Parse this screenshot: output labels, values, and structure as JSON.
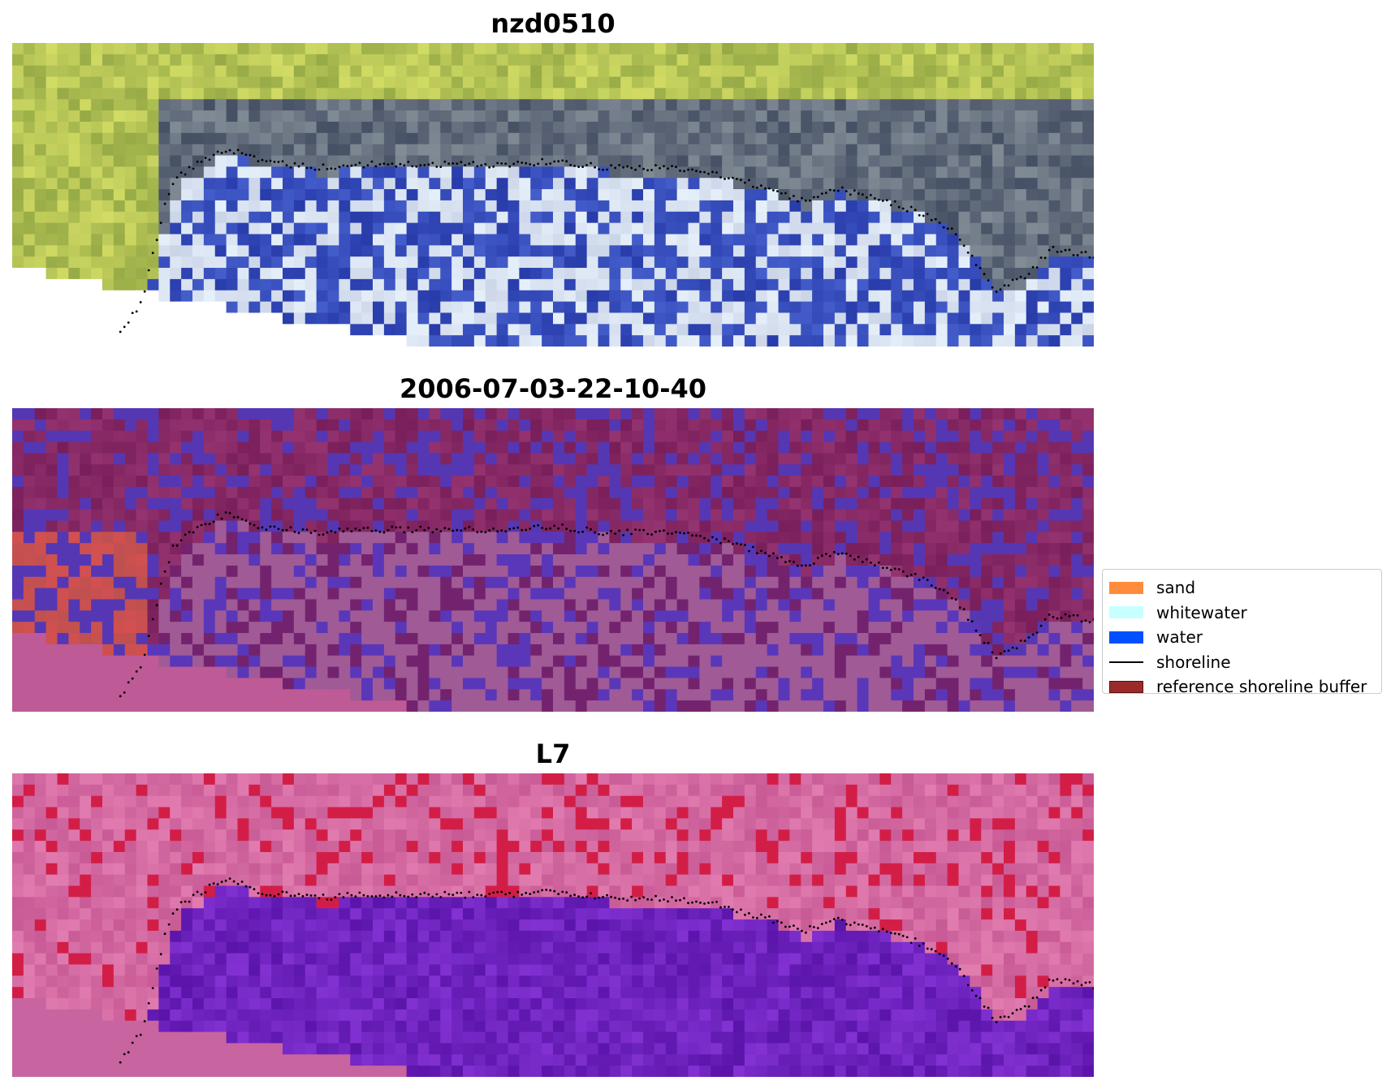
{
  "panels": [
    {
      "title": "nzd0510",
      "kind": "rgb"
    },
    {
      "title": "2006-07-03-22-10-40",
      "kind": "classified"
    },
    {
      "title": "L7",
      "kind": "index"
    }
  ],
  "legend": {
    "items": [
      {
        "label": "sand",
        "color": "#FF8C3C",
        "type": "patch"
      },
      {
        "label": "whitewater",
        "color": "#C8FFFF",
        "type": "patch"
      },
      {
        "label": "water",
        "color": "#0050FF",
        "type": "patch"
      },
      {
        "label": "shoreline",
        "color": "#000000",
        "type": "line"
      },
      {
        "label": "reference shoreline buffer",
        "color": "#9B2A2A",
        "type": "patch"
      }
    ]
  }
}
